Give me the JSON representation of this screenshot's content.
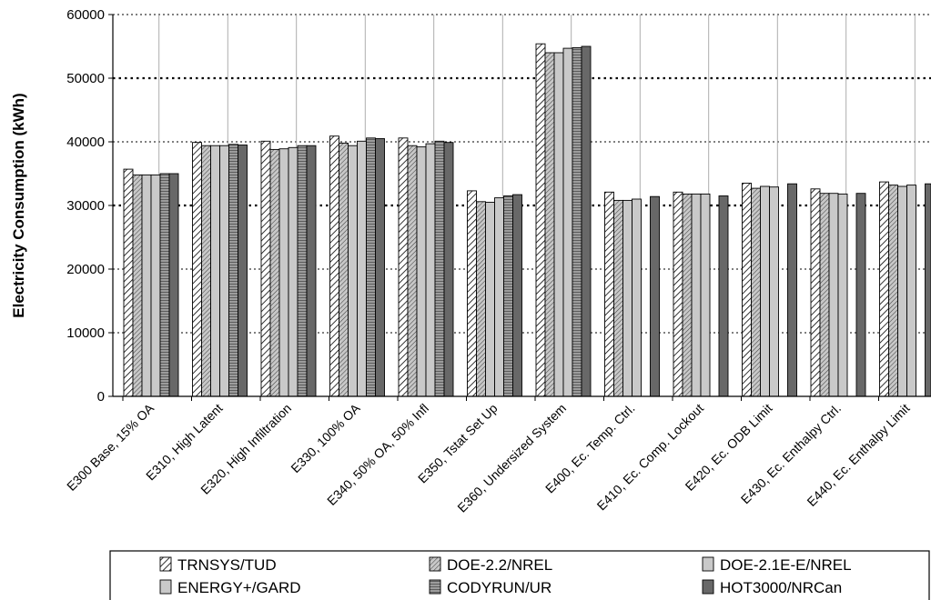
{
  "chart_data": {
    "type": "bar",
    "title": "",
    "xlabel": "",
    "ylabel": "Electricity Consumption (kWh)",
    "ylim": [
      0,
      60000
    ],
    "yticks": [
      "0",
      "10000",
      "20000",
      "30000",
      "40000",
      "50000",
      "60000"
    ],
    "grid": "horizontal dotted",
    "legend_position": "bottom",
    "categories": [
      "E300 Base, 15% OA",
      "E310, High Latent",
      "E320, High Infiltration",
      "E330, 100% OA",
      "E340, 50% OA, 50% Infl",
      "E350, Tstat Set Up",
      "E360, Undersized System",
      "E400, Ec. Temp. Ctrl.",
      "E410, Ec. Comp. Lockout",
      "E420, Ec. ODB Limit",
      "E430, Ec. Enthalpy Ctrl.",
      "E440, Ec. Enthalpy Limit"
    ],
    "series": [
      {
        "name": "TRNSYS/TUD",
        "pattern": "hatch-diag",
        "values": [
          35700,
          39900,
          40100,
          40900,
          40600,
          32300,
          55400,
          32100,
          32100,
          33500,
          32600,
          33700
        ]
      },
      {
        "name": "DOE-2.2/NREL",
        "pattern": "hatch-dense",
        "values": [
          34800,
          39400,
          38800,
          39800,
          39400,
          30600,
          54000,
          30800,
          31800,
          32700,
          31900,
          33200
        ]
      },
      {
        "name": "DOE-2.1E-E/NREL",
        "pattern": "light-grey",
        "values": [
          34800,
          39400,
          38900,
          39400,
          39200,
          30500,
          54000,
          30800,
          31800,
          33000,
          31900,
          33000
        ]
      },
      {
        "name": "ENERGY+/GARD",
        "pattern": "light-grey",
        "values": [
          34800,
          39400,
          39100,
          40100,
          39700,
          31200,
          54700,
          31000,
          31800,
          32900,
          31800,
          33200
        ]
      },
      {
        "name": "CODYRUN/UR",
        "pattern": "hatch-horizontal",
        "values": [
          35000,
          39600,
          39400,
          40600,
          40100,
          31500,
          54800,
          null,
          null,
          null,
          null,
          null
        ]
      },
      {
        "name": "HOT3000/NRCan",
        "pattern": "dark-grey",
        "values": [
          35000,
          39500,
          39400,
          40500,
          39900,
          31700,
          55000,
          31400,
          31500,
          33400,
          31900,
          33400
        ]
      }
    ]
  }
}
